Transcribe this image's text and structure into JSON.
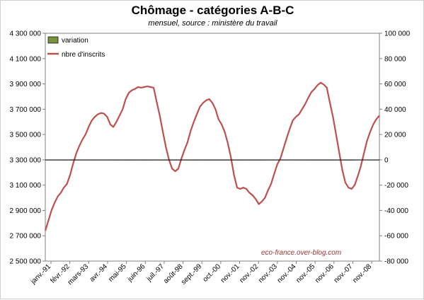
{
  "chart_data": {
    "type": "bar+line",
    "title": "Chômage - catégories A-B-C",
    "subtitle": "mensuel, source : ministère du travail",
    "source_note": "eco-france.over-blog.com",
    "left_axis": {
      "min": 2500000,
      "max": 4300000,
      "ticks": [
        "2 500 000",
        "2 700 000",
        "2 900 000",
        "3 100 000",
        "3 300 000",
        "3 500 000",
        "3 700 000",
        "3 900 000",
        "4 100 000",
        "4 300 000"
      ]
    },
    "right_axis": {
      "min": -80000,
      "max": 100000,
      "ticks": [
        "-80 000",
        "-60 000",
        "-40 000",
        "-20 000",
        "0",
        "20 000",
        "40 000",
        "60 000",
        "80 000",
        "100 000"
      ]
    },
    "x_labels": [
      "janv.-91",
      "févr.-92",
      "mars-93",
      "avr.-94",
      "mai-95",
      "juin-96",
      "juil.-97",
      "août-98",
      "sept.-99",
      "oct.-00",
      "nov.-01",
      "nov.-02",
      "nov.-03",
      "nov.-04",
      "nov.-05",
      "nov.-06",
      "nov.-07",
      "nov.-08"
    ],
    "legend": [
      {
        "name": "variation",
        "color": "#77933c"
      },
      {
        "name": "nbre d'inscrits",
        "color": "#c0504d"
      }
    ],
    "series": [
      {
        "name": "variation",
        "axis": "right",
        "values": [
          26,
          24,
          17,
          22,
          19,
          24,
          37,
          11,
          24,
          28,
          20,
          21,
          24,
          12,
          10,
          14,
          -4,
          -10,
          0,
          -6,
          15,
          9,
          14,
          3,
          10,
          -8,
          -8,
          3,
          6,
          0,
          5,
          9,
          -4,
          12,
          19,
          9,
          4,
          11,
          16,
          5,
          27,
          21,
          23,
          35,
          -1,
          16,
          24,
          7,
          29,
          26,
          17,
          31,
          28,
          15,
          9,
          27,
          22,
          17,
          22,
          35,
          6,
          15,
          18,
          19,
          -8,
          -13,
          -3,
          10,
          5,
          -9,
          1,
          5,
          -1,
          -5,
          3,
          8,
          -5,
          1,
          -7,
          -7,
          -8,
          -8,
          8,
          1,
          -5,
          6,
          4,
          -2,
          10,
          2,
          -11,
          -19,
          -17,
          -19,
          -19,
          4,
          -38,
          -37,
          5,
          8,
          12,
          12,
          10,
          8,
          11,
          20,
          14,
          4,
          8,
          5,
          1,
          25,
          2,
          8,
          10,
          6,
          5,
          9,
          21,
          19,
          14,
          25,
          2,
          13,
          0,
          -1,
          -5,
          16,
          15,
          16,
          18,
          20,
          24,
          23,
          -4,
          -13,
          1,
          0,
          15,
          -5,
          -2,
          -2,
          -2,
          -4,
          -6,
          -5,
          5,
          2,
          3,
          -6,
          -5,
          0,
          -6,
          -1,
          -10,
          -2,
          -3,
          -7,
          -12,
          -17,
          -9,
          -14,
          -16,
          -22,
          -23,
          -32,
          -60,
          -25,
          -51,
          -25,
          -38,
          -35,
          -47,
          -15,
          -28,
          -35,
          -42,
          -29,
          -57,
          -37,
          -51,
          -39,
          -45,
          -30,
          -23,
          -17,
          -29,
          2,
          -15,
          -20,
          -2,
          -11,
          -1,
          -1,
          -17,
          -7,
          7,
          -1,
          -1,
          -6,
          8,
          1,
          3,
          2,
          5,
          1,
          -4,
          3,
          6,
          11,
          5,
          7,
          3,
          16,
          12,
          21,
          8,
          12,
          18,
          20,
          17,
          21,
          15,
          20,
          9,
          23,
          18,
          30,
          10,
          19,
          14,
          34,
          24,
          18,
          25,
          39,
          32,
          22,
          26,
          18,
          42,
          13,
          23,
          12,
          19,
          24,
          23,
          6,
          -1,
          -7,
          -7,
          -3,
          -13,
          -26,
          -22,
          -28,
          -8,
          -6,
          -17,
          -33,
          -39,
          -29,
          -27,
          -22,
          -40,
          -23,
          -41,
          -28,
          -35,
          -38,
          -25,
          -25,
          -34,
          -24,
          -43,
          -21,
          -36,
          -31,
          -20,
          -25,
          -28,
          -17,
          -31,
          -24,
          -12,
          -27,
          -13,
          -24,
          -26,
          -3,
          -14,
          -3,
          5,
          -2,
          -22,
          -27,
          -21,
          17,
          21,
          32,
          48,
          52,
          70,
          56,
          75,
          64,
          58,
          68,
          45,
          90,
          51,
          42,
          34,
          44,
          43,
          30,
          30,
          41,
          34,
          28,
          21,
          16
        ]
      },
      {
        "name": "nbre d'inscrits",
        "axis": "left",
        "values": [
          2740000,
          2820000,
          2900000,
          2960000,
          3010000,
          3040000,
          3080000,
          3110000,
          3180000,
          3270000,
          3350000,
          3410000,
          3460000,
          3500000,
          3560000,
          3610000,
          3640000,
          3660000,
          3670000,
          3665000,
          3640000,
          3580000,
          3560000,
          3600000,
          3650000,
          3700000,
          3780000,
          3830000,
          3850000,
          3860000,
          3875000,
          3870000,
          3875000,
          3880000,
          3875000,
          3870000,
          3760000,
          3650000,
          3520000,
          3400000,
          3300000,
          3230000,
          3210000,
          3230000,
          3310000,
          3380000,
          3440000,
          3530000,
          3600000,
          3660000,
          3720000,
          3750000,
          3770000,
          3780000,
          3750000,
          3700000,
          3620000,
          3580000,
          3520000,
          3430000,
          3320000,
          3180000,
          3080000,
          3070000,
          3080000,
          3070000,
          3040000,
          3020000,
          2990000,
          2950000,
          2970000,
          3000000,
          3060000,
          3110000,
          3190000,
          3265000,
          3310000,
          3390000,
          3470000,
          3545000,
          3610000,
          3640000,
          3660000,
          3700000,
          3740000,
          3790000,
          3835000,
          3860000,
          3890000,
          3910000,
          3895000,
          3870000,
          3750000,
          3640000,
          3500000,
          3360000,
          3220000,
          3120000,
          3080000,
          3070000,
          3100000,
          3170000,
          3250000,
          3350000,
          3450000,
          3520000,
          3580000,
          3620000,
          3650000
        ]
      }
    ]
  }
}
